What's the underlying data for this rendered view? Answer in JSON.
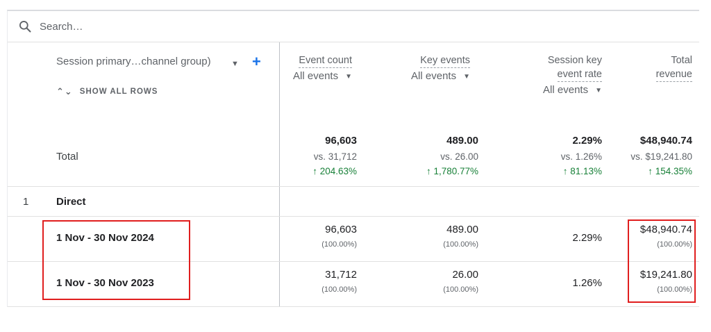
{
  "search": {
    "placeholder": "Search…"
  },
  "dimension": {
    "header": "Session primary…channel group)",
    "show_all_rows": "SHOW ALL ROWS"
  },
  "metrics": [
    {
      "title_lines": [
        "Event count"
      ],
      "selector": "All events"
    },
    {
      "title_lines": [
        "Key events"
      ],
      "selector": "All events"
    },
    {
      "title_lines": [
        "Session key",
        "event rate"
      ],
      "selector": "All events"
    },
    {
      "title_lines": [
        "Total",
        "revenue"
      ],
      "selector": ""
    }
  ],
  "totals": {
    "label": "Total",
    "cells": [
      {
        "value": "96,603",
        "vs": "vs. 31,712",
        "change": "↑ 204.63%"
      },
      {
        "value": "489.00",
        "vs": "vs. 26.00",
        "change": "↑ 1,780.77%"
      },
      {
        "value": "2.29%",
        "vs": "vs. 1.26%",
        "change": "↑ 81.13%"
      },
      {
        "value": "$48,940.74",
        "vs": "vs. $19,241.80",
        "change": "↑ 154.35%"
      }
    ]
  },
  "rows": [
    {
      "index": "1",
      "name": "Direct",
      "periods": [
        {
          "label": "1 Nov - 30 Nov 2024",
          "cells": [
            {
              "value": "96,603",
              "pct": "(100.00%)"
            },
            {
              "value": "489.00",
              "pct": "(100.00%)"
            },
            {
              "value": "2.29%",
              "pct": ""
            },
            {
              "value": "$48,940.74",
              "pct": "(100.00%)"
            }
          ]
        },
        {
          "label": "1 Nov - 30 Nov 2023",
          "cells": [
            {
              "value": "31,712",
              "pct": "(100.00%)"
            },
            {
              "value": "26.00",
              "pct": "(100.00%)"
            },
            {
              "value": "1.26%",
              "pct": ""
            },
            {
              "value": "$19,241.80",
              "pct": "(100.00%)"
            }
          ]
        }
      ]
    }
  ],
  "icons": {
    "search": "search-icon",
    "dropdown": "caret-down-icon",
    "add": "plus-icon",
    "expand": "unfold-icon"
  },
  "colors": {
    "accent": "#1a73e8",
    "positive": "#188038",
    "highlight": "#e01e1e"
  }
}
